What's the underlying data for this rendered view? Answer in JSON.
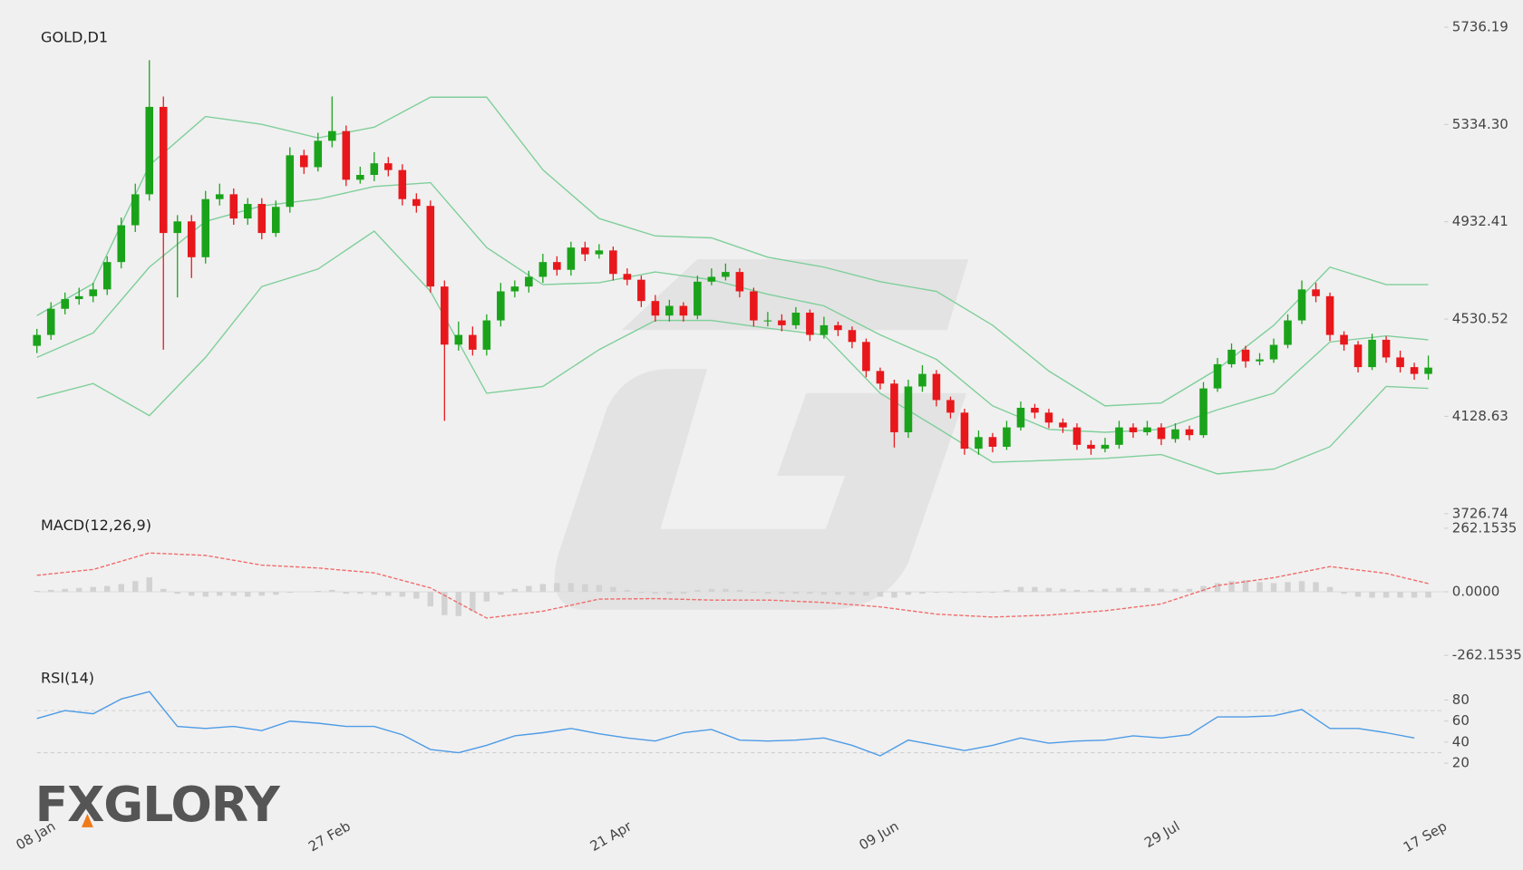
{
  "watermark": "FXGLORY",
  "chart_data": [
    {
      "type": "candlestick",
      "title": "GOLD,D1",
      "categories": [
        "08 Jan",
        null,
        null,
        null,
        null,
        null,
        null,
        null,
        null,
        null,
        null,
        null,
        null,
        null,
        null,
        null,
        null,
        null,
        null,
        null,
        null,
        "27 Feb",
        null,
        null,
        null,
        null,
        null,
        null,
        null,
        null,
        null,
        null,
        null,
        null,
        null,
        null,
        null,
        null,
        null,
        null,
        null,
        "21 Apr",
        null,
        null,
        null,
        null,
        null,
        null,
        null,
        null,
        null,
        null,
        null,
        null,
        null,
        null,
        null,
        null,
        null,
        null,
        "09 Jun",
        null,
        null,
        null,
        null,
        null,
        null,
        null,
        null,
        null,
        null,
        null,
        null,
        null,
        null,
        null,
        null,
        null,
        null,
        null,
        "29 Jul",
        null,
        null,
        null,
        null,
        null,
        null,
        null,
        null,
        null,
        null,
        null,
        null,
        null,
        null,
        null,
        null,
        null,
        null,
        "17 Sep"
      ],
      "ohlc": [
        [
          4420,
          4490,
          4390,
          4465
        ],
        [
          4465,
          4600,
          4445,
          4573
        ],
        [
          4573,
          4640,
          4550,
          4613
        ],
        [
          4613,
          4660,
          4590,
          4625
        ],
        [
          4625,
          4680,
          4600,
          4653
        ],
        [
          4653,
          4790,
          4630,
          4766
        ],
        [
          4766,
          4950,
          4740,
          4918
        ],
        [
          4918,
          5090,
          4890,
          5046
        ],
        [
          5046,
          5600,
          5020,
          5407
        ],
        [
          5407,
          5450,
          4404,
          4886
        ],
        [
          4886,
          4960,
          4620,
          4934
        ],
        [
          4934,
          4960,
          4700,
          4786
        ],
        [
          4786,
          5060,
          4760,
          5026
        ],
        [
          5026,
          5090,
          5000,
          5046
        ],
        [
          5046,
          5070,
          4920,
          4946
        ],
        [
          4946,
          5030,
          4920,
          5006
        ],
        [
          5006,
          5030,
          4860,
          4886
        ],
        [
          4886,
          5020,
          4870,
          4994
        ],
        [
          4994,
          5240,
          4970,
          5207
        ],
        [
          5207,
          5230,
          5130,
          5158
        ],
        [
          5158,
          5300,
          5140,
          5267
        ],
        [
          5267,
          5450,
          5240,
          5307
        ],
        [
          5307,
          5330,
          5080,
          5106
        ],
        [
          5106,
          5160,
          5090,
          5126
        ],
        [
          5126,
          5220,
          5100,
          5174
        ],
        [
          5174,
          5200,
          5120,
          5146
        ],
        [
          5146,
          5170,
          5000,
          5026
        ],
        [
          5026,
          5050,
          4970,
          4998
        ],
        [
          4998,
          5020,
          4640,
          4665
        ],
        [
          4665,
          4690,
          4110,
          4425
        ],
        [
          4425,
          4520,
          4400,
          4465
        ],
        [
          4465,
          4500,
          4380,
          4404
        ],
        [
          4404,
          4550,
          4380,
          4525
        ],
        [
          4525,
          4680,
          4500,
          4645
        ],
        [
          4645,
          4690,
          4620,
          4665
        ],
        [
          4665,
          4730,
          4640,
          4705
        ],
        [
          4705,
          4800,
          4680,
          4766
        ],
        [
          4766,
          4790,
          4710,
          4734
        ],
        [
          4734,
          4850,
          4710,
          4826
        ],
        [
          4826,
          4850,
          4770,
          4798
        ],
        [
          4798,
          4840,
          4780,
          4814
        ],
        [
          4814,
          4830,
          4690,
          4717
        ],
        [
          4717,
          4740,
          4670,
          4693
        ],
        [
          4693,
          4710,
          4580,
          4605
        ],
        [
          4605,
          4630,
          4520,
          4545
        ],
        [
          4545,
          4610,
          4520,
          4585
        ],
        [
          4585,
          4600,
          4520,
          4545
        ],
        [
          4545,
          4710,
          4530,
          4685
        ],
        [
          4685,
          4740,
          4670,
          4705
        ],
        [
          4705,
          4760,
          4690,
          4725
        ],
        [
          4725,
          4740,
          4620,
          4645
        ],
        [
          4645,
          4660,
          4500,
          4525
        ],
        [
          4525,
          4560,
          4500,
          4525
        ],
        [
          4525,
          4550,
          4480,
          4505
        ],
        [
          4505,
          4580,
          4490,
          4557
        ],
        [
          4557,
          4570,
          4440,
          4465
        ],
        [
          4465,
          4540,
          4450,
          4505
        ],
        [
          4505,
          4520,
          4460,
          4485
        ],
        [
          4485,
          4500,
          4410,
          4436
        ],
        [
          4436,
          4450,
          4290,
          4316
        ],
        [
          4316,
          4330,
          4240,
          4264
        ],
        [
          4264,
          4280,
          4000,
          4063
        ],
        [
          4063,
          4280,
          4040,
          4252
        ],
        [
          4252,
          4340,
          4230,
          4304
        ],
        [
          4304,
          4320,
          4170,
          4196
        ],
        [
          4196,
          4210,
          4120,
          4144
        ],
        [
          4144,
          4160,
          3970,
          3995
        ],
        [
          3995,
          4070,
          3970,
          4043
        ],
        [
          4043,
          4060,
          3980,
          4003
        ],
        [
          4003,
          4110,
          3990,
          4083
        ],
        [
          4083,
          4190,
          4070,
          4164
        ],
        [
          4164,
          4180,
          4120,
          4144
        ],
        [
          4144,
          4160,
          4080,
          4103
        ],
        [
          4103,
          4120,
          4060,
          4083
        ],
        [
          4083,
          4100,
          3990,
          4011
        ],
        [
          4011,
          4030,
          3970,
          3995
        ],
        [
          3995,
          4040,
          3980,
          4011
        ],
        [
          4011,
          4110,
          3995,
          4083
        ],
        [
          4083,
          4100,
          4040,
          4063
        ],
        [
          4063,
          4110,
          4050,
          4083
        ],
        [
          4083,
          4100,
          4010,
          4035
        ],
        [
          4035,
          4100,
          4020,
          4075
        ],
        [
          4075,
          4090,
          4030,
          4051
        ],
        [
          4051,
          4270,
          4040,
          4244
        ],
        [
          4244,
          4370,
          4230,
          4344
        ],
        [
          4344,
          4430,
          4330,
          4404
        ],
        [
          4404,
          4420,
          4330,
          4356
        ],
        [
          4356,
          4390,
          4340,
          4364
        ],
        [
          4364,
          4450,
          4350,
          4424
        ],
        [
          4424,
          4550,
          4410,
          4525
        ],
        [
          4525,
          4690,
          4510,
          4653
        ],
        [
          4653,
          4680,
          4600,
          4625
        ],
        [
          4625,
          4640,
          4440,
          4465
        ],
        [
          4465,
          4480,
          4400,
          4425
        ],
        [
          4425,
          4440,
          4310,
          4332
        ],
        [
          4332,
          4470,
          4320,
          4445
        ],
        [
          4445,
          4460,
          4350,
          4372
        ],
        [
          4372,
          4400,
          4310,
          4332
        ],
        [
          4332,
          4350,
          4280,
          4304
        ],
        [
          4304,
          4380,
          4280,
          4330
        ]
      ],
      "up_color": "#1aa31a",
      "down_color": "#e8171b",
      "ylim": [
        3726.74,
        5736.19
      ],
      "yticks": [
        5736.19,
        {
          "value": 5334.3,
          "label": "5334.30"
        },
        4932.41,
        4530.52,
        4128.63,
        3726.74
      ],
      "bands": {
        "x": [
          0,
          4,
          8,
          12,
          16,
          20,
          24,
          28,
          32,
          36,
          40,
          44,
          48,
          52,
          56,
          60,
          64,
          68,
          72,
          76,
          80,
          84,
          88,
          92,
          96,
          99
        ],
        "series": [
          {
            "color": "#7fcf9a",
            "values": [
              4545,
              4677,
              5166,
              5367,
              5335,
              5279,
              5323,
              5447,
              5447,
              5147,
              4946,
              4874,
              4866,
              4786,
              4745,
              4685,
              4645,
              4505,
              4316,
              4172,
              4184,
              4324,
              4505,
              4745,
              4673,
              4673
            ]
          },
          {
            "color": "#7fcf9a",
            "values": [
              4372,
              4473,
              4745,
              4934,
              4998,
              5026,
              5078,
              5094,
              4826,
              4673,
              4681,
              4725,
              4693,
              4633,
              4585,
              4465,
              4364,
              4172,
              4075,
              4063,
              4075,
              4156,
              4224,
              4436,
              4461,
              4445
            ]
          },
          {
            "color": "#7fcf9a",
            "values": [
              4204,
              4264,
              4132,
              4372,
              4665,
              4737,
              4894,
              4645,
              4224,
              4252,
              4404,
              4525,
              4525,
              4493,
              4465,
              4224,
              4083,
              3939,
              3947,
              3955,
              3971,
              3891,
              3911,
              4003,
              4252,
              4244
            ]
          }
        ]
      }
    },
    {
      "type": "macd",
      "title": "MACD(12,26,9)",
      "ylim": [
        -262.1535,
        262.1535
      ],
      "yticks": [
        262.1535,
        {
          "value": 0,
          "label": "0.0000"
        },
        -262.1535
      ],
      "histogram": {
        "color": "#d2d2d2",
        "values": [
          4,
          8,
          12,
          16,
          20,
          24,
          32,
          44,
          60,
          12,
          -8,
          -16,
          -20,
          -16,
          -16,
          -20,
          -16,
          -12,
          -4,
          0,
          4,
          8,
          -8,
          -8,
          -12,
          -16,
          -20,
          -28,
          -60,
          -96,
          -100,
          -80,
          -40,
          -12,
          12,
          24,
          32,
          36,
          36,
          32,
          28,
          20,
          8,
          -4,
          -8,
          -8,
          -8,
          8,
          12,
          12,
          8,
          -4,
          -8,
          -8,
          -8,
          -8,
          -12,
          -12,
          -12,
          -16,
          -20,
          -24,
          -12,
          -8,
          -4,
          -4,
          -4,
          -4,
          -4,
          8,
          20,
          20,
          16,
          12,
          8,
          8,
          12,
          16,
          16,
          16,
          12,
          12,
          12,
          24,
          36,
          44,
          48,
          40,
          36,
          40,
          44,
          40,
          20,
          -8,
          -20,
          -24,
          -24,
          -24,
          -24,
          -24
        ]
      },
      "signal": {
        "color": "#f26b6b",
        "x": [
          0,
          4,
          8,
          12,
          16,
          20,
          24,
          28,
          32,
          36,
          40,
          44,
          48,
          52,
          56,
          60,
          64,
          68,
          72,
          76,
          80,
          84,
          88,
          92,
          96,
          99
        ],
        "values": [
          68,
          92,
          160,
          150,
          110,
          98,
          78,
          16,
          -108,
          -80,
          -30,
          -28,
          -34,
          -34,
          -44,
          -62,
          -92,
          -104,
          -96,
          -78,
          -50,
          26,
          58,
          104,
          76,
          34
        ]
      }
    },
    {
      "type": "rsi",
      "title": "RSI(14)",
      "ylim": [
        10,
        100
      ],
      "yticks": [
        20,
        40,
        60,
        80
      ],
      "levels": [
        30,
        70
      ],
      "color": "#4d9be6",
      "x": [
        0,
        2,
        4,
        6,
        8,
        10,
        12,
        14,
        16,
        18,
        20,
        22,
        24,
        26,
        28,
        30,
        32,
        34,
        36,
        38,
        40,
        42,
        44,
        46,
        48,
        50,
        52,
        54,
        56,
        58,
        60,
        62,
        64,
        66,
        68,
        70,
        72,
        74,
        76,
        78,
        80,
        82,
        84,
        86,
        88,
        90,
        92,
        94,
        96,
        98
      ],
      "values": [
        62.5,
        70,
        67,
        81,
        88,
        55,
        53,
        55,
        51,
        60,
        58,
        55,
        55,
        47,
        33,
        30,
        37,
        46,
        49,
        53,
        48,
        44,
        41,
        49,
        52,
        42,
        41,
        42,
        44,
        37,
        27,
        42,
        37,
        32,
        37,
        44,
        39,
        41,
        42,
        46,
        44,
        47,
        64,
        64,
        65,
        71,
        53,
        53,
        49,
        44
      ]
    }
  ]
}
